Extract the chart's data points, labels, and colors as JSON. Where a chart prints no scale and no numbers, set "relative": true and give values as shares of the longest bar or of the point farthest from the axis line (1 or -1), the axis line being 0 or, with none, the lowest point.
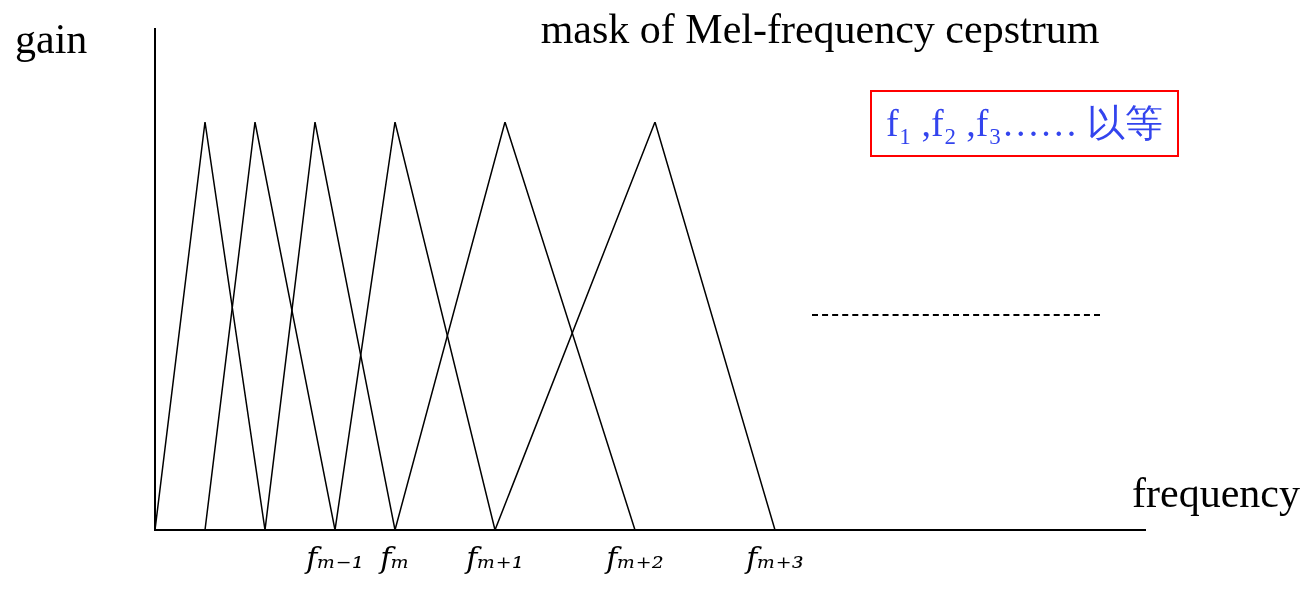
{
  "chart_data": {
    "type": "line",
    "title": "mask of Mel-frequency cepstrum",
    "xlabel": "frequency",
    "ylabel": "gain",
    "relative": true,
    "marker": "none",
    "line_style": "solid",
    "grid": false,
    "tick_labels": "x",
    "categories": [
      null,
      null,
      null,
      null,
      null,
      null,
      null,
      null,
      null,
      null,
      null,
      null,
      null,
      null,
      null,
      null,
      null,
      null,
      "fₘ₋₁",
      null,
      null,
      null,
      null,
      null,
      "fₘ",
      null,
      null,
      null,
      null,
      null,
      null,
      null,
      null,
      null,
      "fₘ₊₁",
      null,
      null,
      null,
      null,
      null,
      null,
      null,
      null,
      null,
      null,
      null,
      null,
      null,
      "fₘ₊₂",
      null,
      null,
      null,
      null,
      null,
      null,
      null,
      null,
      null,
      null,
      null,
      null,
      null,
      "fₘ₊₃",
      null,
      null,
      null,
      null,
      null,
      null,
      null,
      null,
      null,
      null,
      null,
      null,
      null,
      null,
      null,
      null,
      null,
      null,
      null,
      null,
      null,
      null,
      null,
      null,
      null,
      null,
      null,
      null,
      null,
      null,
      null,
      null,
      null,
      null,
      null,
      null,
      null
    ],
    "series": [
      {
        "color": "#000000",
        "values": [
          0,
          null,
          null,
          null,
          null,
          1,
          null,
          null,
          null,
          null,
          null,
          0,
          null,
          null,
          null,
          null,
          null,
          null,
          null,
          null,
          null,
          null,
          null,
          null,
          null,
          null,
          null,
          null,
          null,
          null,
          null,
          null,
          null,
          null,
          null,
          null,
          null,
          null,
          null,
          null,
          null,
          null,
          null,
          null,
          null,
          null,
          null,
          null,
          null,
          null,
          null,
          null,
          null,
          null,
          null,
          null,
          null,
          null,
          null,
          null,
          null,
          null,
          null,
          null,
          null,
          null,
          null,
          null,
          null,
          null,
          null,
          null,
          null,
          null,
          null,
          null,
          null,
          null,
          null,
          null,
          null,
          null,
          null,
          null,
          null,
          null,
          null,
          null,
          null,
          null,
          null,
          null,
          null,
          null,
          null,
          null,
          null,
          null,
          null,
          null
        ]
      },
      {
        "color": "#000000",
        "values": [
          null,
          null,
          null,
          null,
          null,
          0,
          null,
          null,
          null,
          null,
          1,
          null,
          null,
          null,
          null,
          null,
          null,
          null,
          0,
          null,
          null,
          null,
          null,
          null,
          null,
          null,
          null,
          null,
          null,
          null,
          null,
          null,
          null,
          null,
          null,
          null,
          null,
          null,
          null,
          null,
          null,
          null,
          null,
          null,
          null,
          null,
          null,
          null,
          null,
          null,
          null,
          null,
          null,
          null,
          null,
          null,
          null,
          null,
          null,
          null,
          null,
          null,
          null,
          null,
          null,
          null,
          null,
          null,
          null,
          null,
          null,
          null,
          null,
          null,
          null,
          null,
          null,
          null,
          null,
          null,
          null,
          null,
          null,
          null,
          null,
          null,
          null,
          null,
          null,
          null,
          null,
          null,
          null,
          null,
          null,
          null,
          null,
          null,
          null,
          null
        ]
      },
      {
        "color": "#000000",
        "values": [
          null,
          null,
          null,
          null,
          null,
          null,
          null,
          null,
          null,
          null,
          null,
          0,
          null,
          null,
          null,
          null,
          1,
          null,
          null,
          null,
          null,
          null,
          null,
          null,
          0,
          null,
          null,
          null,
          null,
          null,
          null,
          null,
          null,
          null,
          null,
          null,
          null,
          null,
          null,
          null,
          null,
          null,
          null,
          null,
          null,
          null,
          null,
          null,
          null,
          null,
          null,
          null,
          null,
          null,
          null,
          null,
          null,
          null,
          null,
          null,
          null,
          null,
          null,
          null,
          null,
          null,
          null,
          null,
          null,
          null,
          null,
          null,
          null,
          null,
          null,
          null,
          null,
          null,
          null,
          null,
          null,
          null,
          null,
          null,
          null,
          null,
          null,
          null,
          null,
          null,
          null,
          null,
          null,
          null,
          null,
          null,
          null,
          null,
          null,
          null
        ]
      },
      {
        "color": "#000000",
        "values": [
          null,
          null,
          null,
          null,
          null,
          null,
          null,
          null,
          null,
          null,
          null,
          null,
          null,
          null,
          null,
          null,
          null,
          null,
          0,
          null,
          null,
          null,
          null,
          null,
          1,
          null,
          null,
          null,
          null,
          null,
          null,
          null,
          null,
          null,
          0,
          null,
          null,
          null,
          null,
          null,
          null,
          null,
          null,
          null,
          null,
          null,
          null,
          null,
          null,
          null,
          null,
          null,
          null,
          null,
          null,
          null,
          null,
          null,
          null,
          null,
          null,
          null,
          null,
          null,
          null,
          null,
          null,
          null,
          null,
          null,
          null,
          null,
          null,
          null,
          null,
          null,
          null,
          null,
          null,
          null,
          null,
          null,
          null,
          null,
          null,
          null,
          null,
          null,
          null,
          null,
          null,
          null,
          null,
          null,
          null,
          null,
          null,
          null,
          null,
          null
        ]
      },
      {
        "color": "#000000",
        "values": [
          null,
          null,
          null,
          null,
          null,
          null,
          null,
          null,
          null,
          null,
          null,
          null,
          null,
          null,
          null,
          null,
          null,
          null,
          null,
          null,
          null,
          null,
          null,
          null,
          0,
          null,
          null,
          null,
          null,
          null,
          null,
          null,
          null,
          null,
          null,
          1,
          null,
          null,
          null,
          null,
          null,
          null,
          null,
          null,
          null,
          null,
          null,
          null,
          0,
          null,
          null,
          null,
          null,
          null,
          null,
          null,
          null,
          null,
          null,
          null,
          null,
          null,
          null,
          null,
          null,
          null,
          null,
          null,
          null,
          null,
          null,
          null,
          null,
          null,
          null,
          null,
          null,
          null,
          null,
          null,
          null,
          null,
          null,
          null,
          null,
          null,
          null,
          null,
          null,
          null,
          null,
          null,
          null,
          null,
          null,
          null,
          null,
          null,
          null,
          null
        ]
      },
      {
        "color": "#000000",
        "values": [
          null,
          null,
          null,
          null,
          null,
          null,
          null,
          null,
          null,
          null,
          null,
          null,
          null,
          null,
          null,
          null,
          null,
          null,
          null,
          null,
          null,
          null,
          null,
          null,
          null,
          null,
          null,
          null,
          null,
          null,
          null,
          null,
          null,
          null,
          0,
          null,
          null,
          null,
          null,
          null,
          null,
          null,
          null,
          null,
          null,
          null,
          null,
          null,
          null,
          null,
          1,
          null,
          null,
          null,
          null,
          null,
          null,
          null,
          null,
          null,
          null,
          null,
          0,
          null,
          null,
          null,
          null,
          null,
          null,
          null,
          null,
          null,
          null,
          null,
          null,
          null,
          null,
          null,
          null,
          null,
          null,
          null,
          null,
          null,
          null,
          null,
          null,
          null,
          null,
          null,
          null,
          null,
          null,
          null,
          null,
          null,
          null,
          null,
          null,
          null
        ]
      }
    ],
    "annotations": [
      "f₁ ,f₂ ,f₃…… 以等"
    ]
  }
}
